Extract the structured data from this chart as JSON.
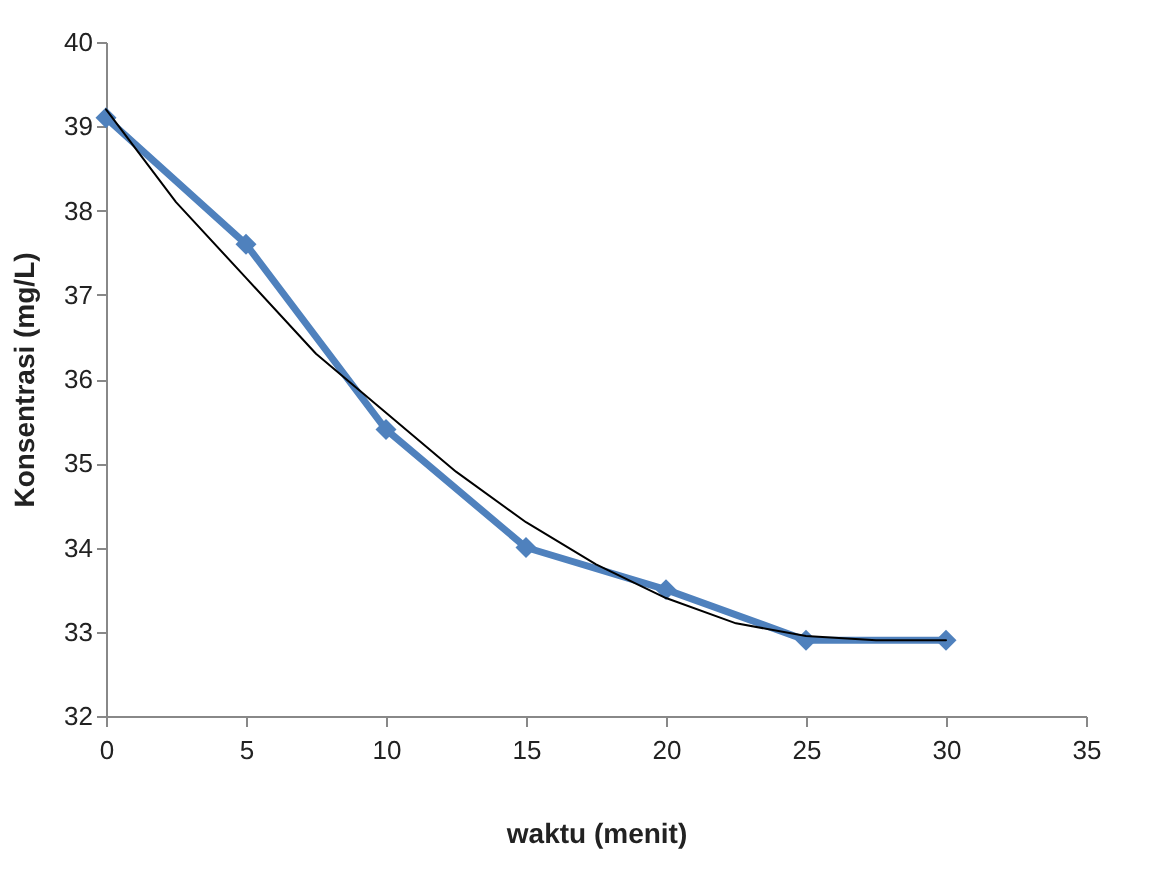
{
  "chart_data": {
    "type": "line",
    "xlabel": "waktu (menit)",
    "ylabel": "Konsentrasi (mg/L)",
    "x": [
      0,
      5,
      10,
      15,
      20,
      25,
      30
    ],
    "series": [
      {
        "color": "#4f81bd",
        "marker": "diamond",
        "values": [
          39.1,
          37.6,
          35.4,
          34.0,
          33.5,
          32.9,
          32.9
        ]
      },
      {
        "color": "#000000",
        "marker": "none",
        "x": [
          0,
          2.5,
          5,
          7.5,
          10,
          12.5,
          15,
          17.5,
          20,
          22.5,
          25,
          27.5,
          30
        ],
        "values": [
          39.2,
          38.1,
          37.2,
          36.3,
          35.6,
          34.9,
          34.3,
          33.8,
          33.4,
          33.1,
          32.95,
          32.9,
          32.9
        ]
      }
    ],
    "xlim": [
      0,
      35
    ],
    "xticks": [
      0,
      5,
      10,
      15,
      20,
      25,
      30,
      35
    ],
    "ylim": [
      32,
      40
    ],
    "yticks": [
      32,
      33,
      34,
      35,
      36,
      37,
      38,
      39,
      40
    ],
    "grid": false,
    "legend": false
  }
}
